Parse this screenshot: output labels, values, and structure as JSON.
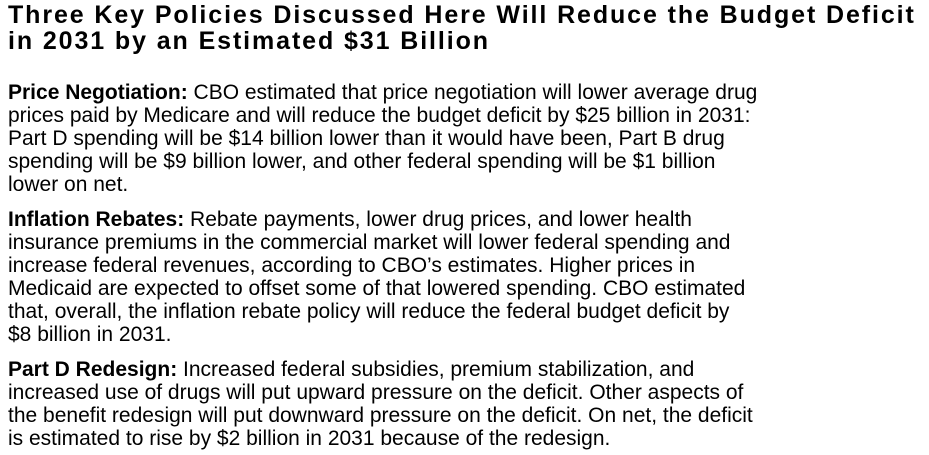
{
  "colors": {
    "background": "#ffffff",
    "text": "#000000"
  },
  "heading": {
    "lines": [
      "Three Key Policies Discussed Here Will Reduce the Budget Deficit",
      "in 2031 by an Estimated $31 Billion"
    ]
  },
  "paragraphs": [
    {
      "label": "Price Negotiation:",
      "first_line": " CBO estimated that price negotiation will lower average drug",
      "lines": [
        "prices paid by Medicare and will reduce the budget deficit by $25 billion in 2031:",
        "Part D spending will be $14 billion lower than it would have been, Part B drug",
        "spending will be $9 billion lower, and other federal spending will be $1 billion",
        "lower on net."
      ]
    },
    {
      "label": "Inflation Rebates:",
      "first_line": " Rebate payments, lower drug prices, and lower health",
      "lines": [
        "insurance premiums in the commercial market will lower federal spending and",
        "increase federal revenues, according to CBO’s estimates. Higher prices in",
        "Medicaid are expected to offset some of that lowered spending. CBO estimated",
        "that, overall, the inflation rebate policy will reduce the federal budget deficit by",
        "$8 billion in 2031."
      ]
    },
    {
      "label": "Part D Redesign:",
      "first_line": " Increased federal subsidies, premium stabilization, and",
      "lines": [
        "increased use of drugs will put upward pressure on the deficit. Other aspects of",
        "the benefit redesign will put downward pressure on the deficit. On net, the deficit",
        "is estimated to rise by $2 billion in 2031 because of the redesign."
      ]
    }
  ]
}
